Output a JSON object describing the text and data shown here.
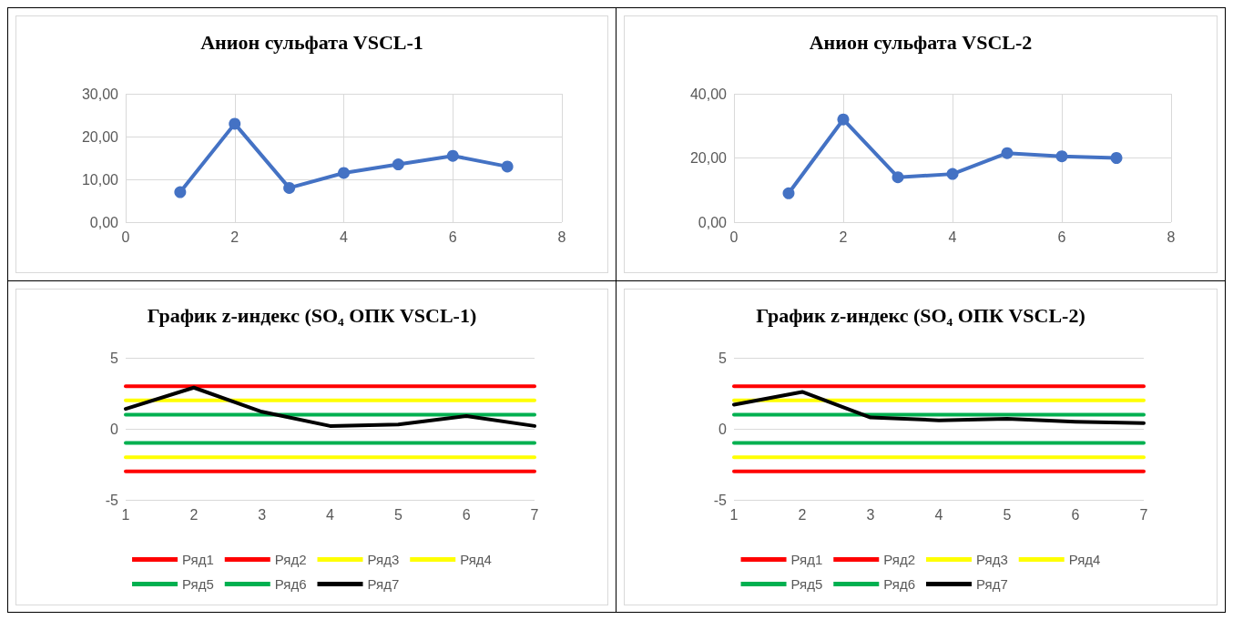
{
  "chart_data": [
    {
      "type": "line",
      "title": "Анион сульфата VSCL-1",
      "x": [
        1,
        2,
        3,
        4,
        5,
        6,
        7
      ],
      "xlim": [
        0,
        8
      ],
      "xticks": [
        0,
        2,
        4,
        6,
        8
      ],
      "ylim": [
        0,
        30
      ],
      "yticks": [
        {
          "value": 0,
          "label": "0,00"
        },
        {
          "value": 10,
          "label": "10,00"
        },
        {
          "value": 20,
          "label": "20,00"
        },
        {
          "value": 30,
          "label": "30,00"
        }
      ],
      "grid": true,
      "marker": "circle",
      "line_style": "solid",
      "legend": false,
      "series": [
        {
          "color": "#4472c4",
          "values": [
            7.0,
            23.0,
            8.0,
            11.5,
            13.5,
            15.5,
            13.0
          ]
        }
      ]
    },
    {
      "type": "line",
      "title": "Анион сульфата VSCL-2",
      "x": [
        1,
        2,
        3,
        4,
        5,
        6,
        7
      ],
      "xlim": [
        0,
        8
      ],
      "xticks": [
        0,
        2,
        4,
        6,
        8
      ],
      "ylim": [
        0,
        40
      ],
      "yticks": [
        {
          "value": 0,
          "label": "0,00"
        },
        {
          "value": 20,
          "label": "20,00"
        },
        {
          "value": 40,
          "label": "40,00"
        }
      ],
      "grid": true,
      "marker": "circle",
      "line_style": "solid",
      "legend": false,
      "series": [
        {
          "color": "#4472c4",
          "values": [
            9,
            32,
            14,
            15,
            21.5,
            20.5,
            20
          ]
        }
      ]
    },
    {
      "type": "line",
      "title": "График z-индекс (SO₄ ОПК VSCL-1)",
      "categories": [
        "1",
        "2",
        "3",
        "4",
        "5",
        "6",
        "7"
      ],
      "ylim": [
        -5,
        5
      ],
      "yticks": [
        -5,
        0,
        5
      ],
      "grid": "y",
      "marker": "none",
      "line_style": "solid",
      "legend": "bottom",
      "series": [
        {
          "name": "Ряд1",
          "color": "#ff0000",
          "values": [
            3,
            3,
            3,
            3,
            3,
            3,
            3
          ]
        },
        {
          "name": "Ряд2",
          "color": "#ff0000",
          "values": [
            -3,
            -3,
            -3,
            -3,
            -3,
            -3,
            -3
          ]
        },
        {
          "name": "Ряд3",
          "color": "#ffff00",
          "values": [
            2,
            2,
            2,
            2,
            2,
            2,
            2
          ]
        },
        {
          "name": "Ряд4",
          "color": "#ffff00",
          "values": [
            -2,
            -2,
            -2,
            -2,
            -2,
            -2,
            -2
          ]
        },
        {
          "name": "Ряд5",
          "color": "#00b050",
          "values": [
            1,
            1,
            1,
            1,
            1,
            1,
            1
          ]
        },
        {
          "name": "Ряд6",
          "color": "#00b050",
          "values": [
            -1,
            -1,
            -1,
            -1,
            -1,
            -1,
            -1
          ]
        },
        {
          "name": "Ряд7",
          "color": "#000000",
          "values": [
            1.4,
            2.9,
            1.2,
            0.2,
            0.3,
            0.9,
            0.2
          ]
        }
      ]
    },
    {
      "type": "line",
      "title": "График z-индекс (SO₄ ОПК VSCL-2)",
      "categories": [
        "1",
        "2",
        "3",
        "4",
        "5",
        "6",
        "7"
      ],
      "ylim": [
        -5,
        5
      ],
      "yticks": [
        -5,
        0,
        5
      ],
      "grid": "y",
      "marker": "none",
      "line_style": "solid",
      "legend": "bottom",
      "series": [
        {
          "name": "Ряд1",
          "color": "#ff0000",
          "values": [
            3,
            3,
            3,
            3,
            3,
            3,
            3
          ]
        },
        {
          "name": "Ряд2",
          "color": "#ff0000",
          "values": [
            -3,
            -3,
            -3,
            -3,
            -3,
            -3,
            -3
          ]
        },
        {
          "name": "Ряд3",
          "color": "#ffff00",
          "values": [
            2,
            2,
            2,
            2,
            2,
            2,
            2
          ]
        },
        {
          "name": "Ряд4",
          "color": "#ffff00",
          "values": [
            -2,
            -2,
            -2,
            -2,
            -2,
            -2,
            -2
          ]
        },
        {
          "name": "Ряд5",
          "color": "#00b050",
          "values": [
            1,
            1,
            1,
            1,
            1,
            1,
            1
          ]
        },
        {
          "name": "Ряд6",
          "color": "#00b050",
          "values": [
            -1,
            -1,
            -1,
            -1,
            -1,
            -1,
            -1
          ]
        },
        {
          "name": "Ряд7",
          "color": "#000000",
          "values": [
            1.7,
            2.6,
            0.8,
            0.6,
            0.7,
            0.5,
            0.4
          ]
        }
      ]
    }
  ]
}
